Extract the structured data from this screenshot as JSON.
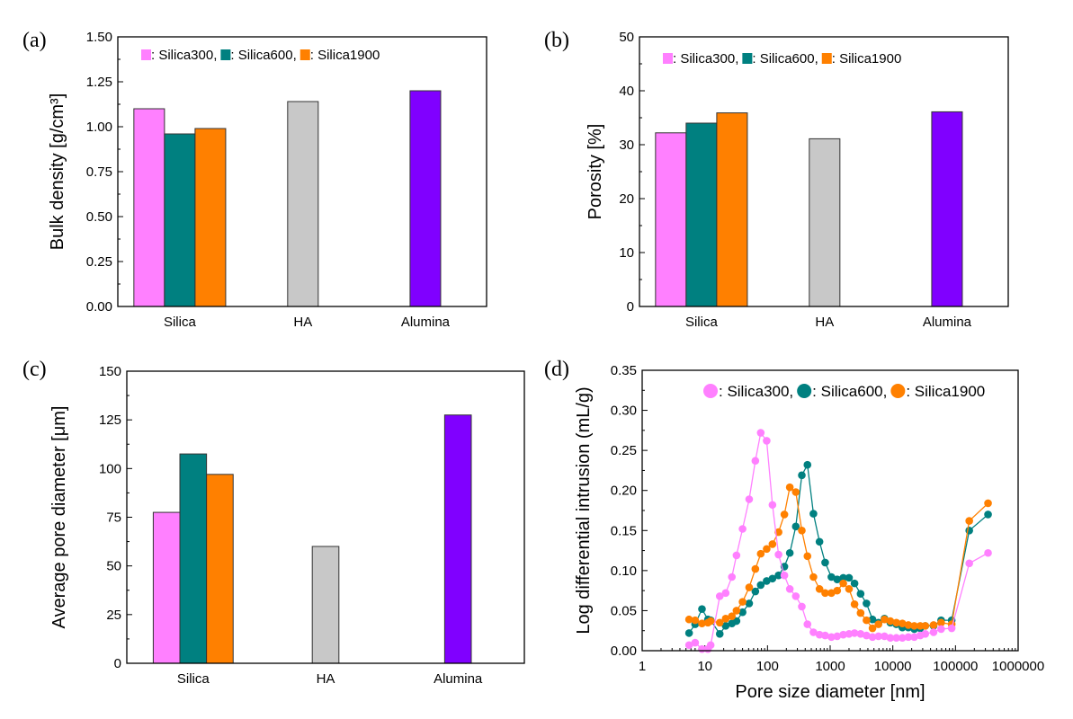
{
  "colors": {
    "Silica300": "#ff80ff",
    "Silica600": "#008080",
    "Silica1900": "#ff8000",
    "HA": "#c8c8c8",
    "Alumina": "#8000ff"
  },
  "chart_data": [
    {
      "panel_label": "(a)",
      "type": "bar",
      "ylabel": "Bulk density [g/cm³]",
      "xlabel": "",
      "ylim": [
        0,
        1.5
      ],
      "yticks": [
        "0.00",
        "0.25",
        "0.50",
        "0.75",
        "1.00",
        "1.25",
        "1.50"
      ],
      "categories": [
        "Silica",
        "HA",
        "Alumina"
      ],
      "legend": [
        "Silica300",
        "Silica600",
        "Silica1900"
      ],
      "legend_labels": [
        ": Silica300,",
        ": Silica600,",
        ": Silica1900"
      ],
      "legend_marker": "square",
      "bars": [
        {
          "category": "Silica",
          "series": "Silica300",
          "value": 1.1
        },
        {
          "category": "Silica",
          "series": "Silica600",
          "value": 0.96
        },
        {
          "category": "Silica",
          "series": "Silica1900",
          "value": 0.99
        },
        {
          "category": "HA",
          "series": "HA",
          "value": 1.14
        },
        {
          "category": "Alumina",
          "series": "Alumina",
          "value": 1.2
        }
      ],
      "grid": false
    },
    {
      "panel_label": "(b)",
      "type": "bar",
      "ylabel": "Porosity [%]",
      "xlabel": "",
      "ylim": [
        0,
        50
      ],
      "yticks": [
        "0",
        "10",
        "20",
        "30",
        "40",
        "50"
      ],
      "categories": [
        "Silica",
        "HA",
        "Alumina"
      ],
      "legend": [
        "Silica300",
        "Silica600",
        "Silica1900"
      ],
      "legend_labels": [
        ": Silica300,",
        ": Silica600,",
        ": Silica1900"
      ],
      "legend_marker": "square",
      "bars": [
        {
          "category": "Silica",
          "series": "Silica300",
          "value": 32.2
        },
        {
          "category": "Silica",
          "series": "Silica600",
          "value": 34.0
        },
        {
          "category": "Silica",
          "series": "Silica1900",
          "value": 35.9
        },
        {
          "category": "HA",
          "series": "HA",
          "value": 31.1
        },
        {
          "category": "Alumina",
          "series": "Alumina",
          "value": 36.1
        }
      ],
      "grid": false
    },
    {
      "panel_label": "(c)",
      "type": "bar",
      "ylabel": "Average pore diameter [μm]",
      "xlabel": "",
      "ylim": [
        0,
        150
      ],
      "yticks": [
        "0",
        "25",
        "50",
        "75",
        "100",
        "125",
        "150"
      ],
      "categories": [
        "Silica",
        "HA",
        "Alumina"
      ],
      "bars": [
        {
          "category": "Silica",
          "series": "Silica300",
          "value": 77.5
        },
        {
          "category": "Silica",
          "series": "Silica600",
          "value": 107.5
        },
        {
          "category": "Silica",
          "series": "Silica1900",
          "value": 97
        },
        {
          "category": "HA",
          "series": "HA",
          "value": 60
        },
        {
          "category": "Alumina",
          "series": "Alumina",
          "value": 127.5
        }
      ],
      "grid": false
    },
    {
      "panel_label": "(d)",
      "type": "line",
      "xscale": "log",
      "ylabel": "Log differential intrusion (mL/g)",
      "xlabel": "Pore size diameter [nm]",
      "xlim": [
        1,
        1000000
      ],
      "ylim": [
        0,
        0.35
      ],
      "xticks": [
        "1",
        "10",
        "100",
        "1000",
        "10000",
        "100000",
        "1000000"
      ],
      "yticks": [
        "0.00",
        "0.05",
        "0.10",
        "0.15",
        "0.20",
        "0.25",
        "0.30",
        "0.35"
      ],
      "legend_labels": [
        ": Silica300,",
        ": Silica600,",
        ": Silica1900"
      ],
      "legend_marker": "circle",
      "x": [
        5.6,
        7.0,
        9,
        11.2,
        12.4,
        17.3,
        21.5,
        27,
        32,
        40,
        51,
        64,
        78,
        97,
        120,
        150,
        186,
        227,
        283,
        353,
        434,
        541,
        676,
        832,
        1047,
        1295,
        1620,
        2000,
        2450,
        3060,
        3800,
        4740,
        5900,
        7360,
        9130,
        11400,
        14200,
        17700,
        22000,
        27400,
        33000,
        44700,
        59000,
        87000,
        166000,
        331000
      ],
      "series": [
        {
          "name": "Silica300",
          "values": [
            0.007,
            0.01,
            0.002,
            0.002,
            0.007,
            0.068,
            0.072,
            0.092,
            0.119,
            0.152,
            0.189,
            0.237,
            0.272,
            0.262,
            0.182,
            0.12,
            0.094,
            0.077,
            0.068,
            0.055,
            0.033,
            0.023,
            0.02,
            0.019,
            0.017,
            0.018,
            0.02,
            0.021,
            0.022,
            0.021,
            0.019,
            0.017,
            0.018,
            0.018,
            0.016,
            0.016,
            0.016,
            0.017,
            0.017,
            0.019,
            0.021,
            0.023,
            0.027,
            0.028,
            0.109,
            0.122
          ]
        },
        {
          "name": "Silica600",
          "values": [
            0.022,
            0.033,
            0.052,
            0.039,
            0.038,
            0.021,
            0.031,
            0.034,
            0.037,
            0.048,
            0.059,
            0.074,
            0.082,
            0.087,
            0.09,
            0.094,
            0.105,
            0.122,
            0.155,
            0.219,
            0.232,
            0.171,
            0.136,
            0.11,
            0.092,
            0.089,
            0.091,
            0.091,
            0.084,
            0.071,
            0.059,
            0.039,
            0.035,
            0.04,
            0.035,
            0.033,
            0.029,
            0.029,
            0.027,
            0.028,
            0.031,
            0.031,
            0.038,
            0.038,
            0.15,
            0.17
          ]
        },
        {
          "name": "Silica1900",
          "values": [
            0.039,
            0.038,
            0.034,
            0.035,
            0.037,
            0.035,
            0.04,
            0.043,
            0.05,
            0.061,
            0.079,
            0.102,
            0.121,
            0.127,
            0.133,
            0.148,
            0.17,
            0.204,
            0.198,
            0.15,
            0.118,
            0.092,
            0.077,
            0.072,
            0.072,
            0.075,
            0.084,
            0.077,
            0.058,
            0.047,
            0.038,
            0.028,
            0.033,
            0.039,
            0.037,
            0.035,
            0.034,
            0.032,
            0.031,
            0.031,
            0.031,
            0.032,
            0.035,
            0.033,
            0.162,
            0.184
          ]
        }
      ],
      "grid": false
    }
  ]
}
